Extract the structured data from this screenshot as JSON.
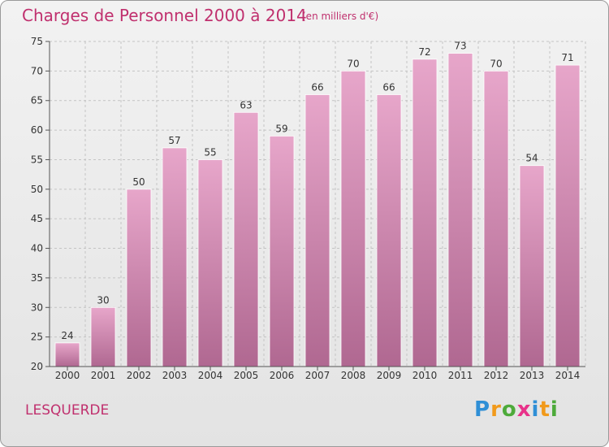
{
  "header": {
    "title": "Charges de Personnel 2000 à 2014",
    "unit": "(en milliers d'€)"
  },
  "footer": {
    "commune": "LESQUERDE",
    "logo": "Proxiti"
  },
  "colors": {
    "accent": "#c0306e",
    "bar_top": "#e7a6ca",
    "bar_bottom": "#b06891",
    "logo_letters": [
      "#2f8fd6",
      "#f19a1b",
      "#4daa3a",
      "#e8328a",
      "#2f8fd6",
      "#f19a1b",
      "#4daa3a"
    ]
  },
  "chart_data": {
    "type": "bar",
    "title": "Charges de Personnel 2000 à 2014",
    "xlabel": "",
    "ylabel": "",
    "categories": [
      "2000",
      "2001",
      "2002",
      "2003",
      "2004",
      "2005",
      "2006",
      "2007",
      "2008",
      "2009",
      "2010",
      "2011",
      "2012",
      "2013",
      "2014"
    ],
    "values": [
      24,
      30,
      50,
      57,
      55,
      63,
      59,
      66,
      70,
      66,
      72,
      73,
      70,
      54,
      71
    ],
    "ylim": [
      20,
      75
    ],
    "yticks": [
      20,
      25,
      30,
      35,
      40,
      45,
      50,
      55,
      60,
      65,
      70,
      75
    ],
    "grid": true,
    "legend": "none"
  }
}
